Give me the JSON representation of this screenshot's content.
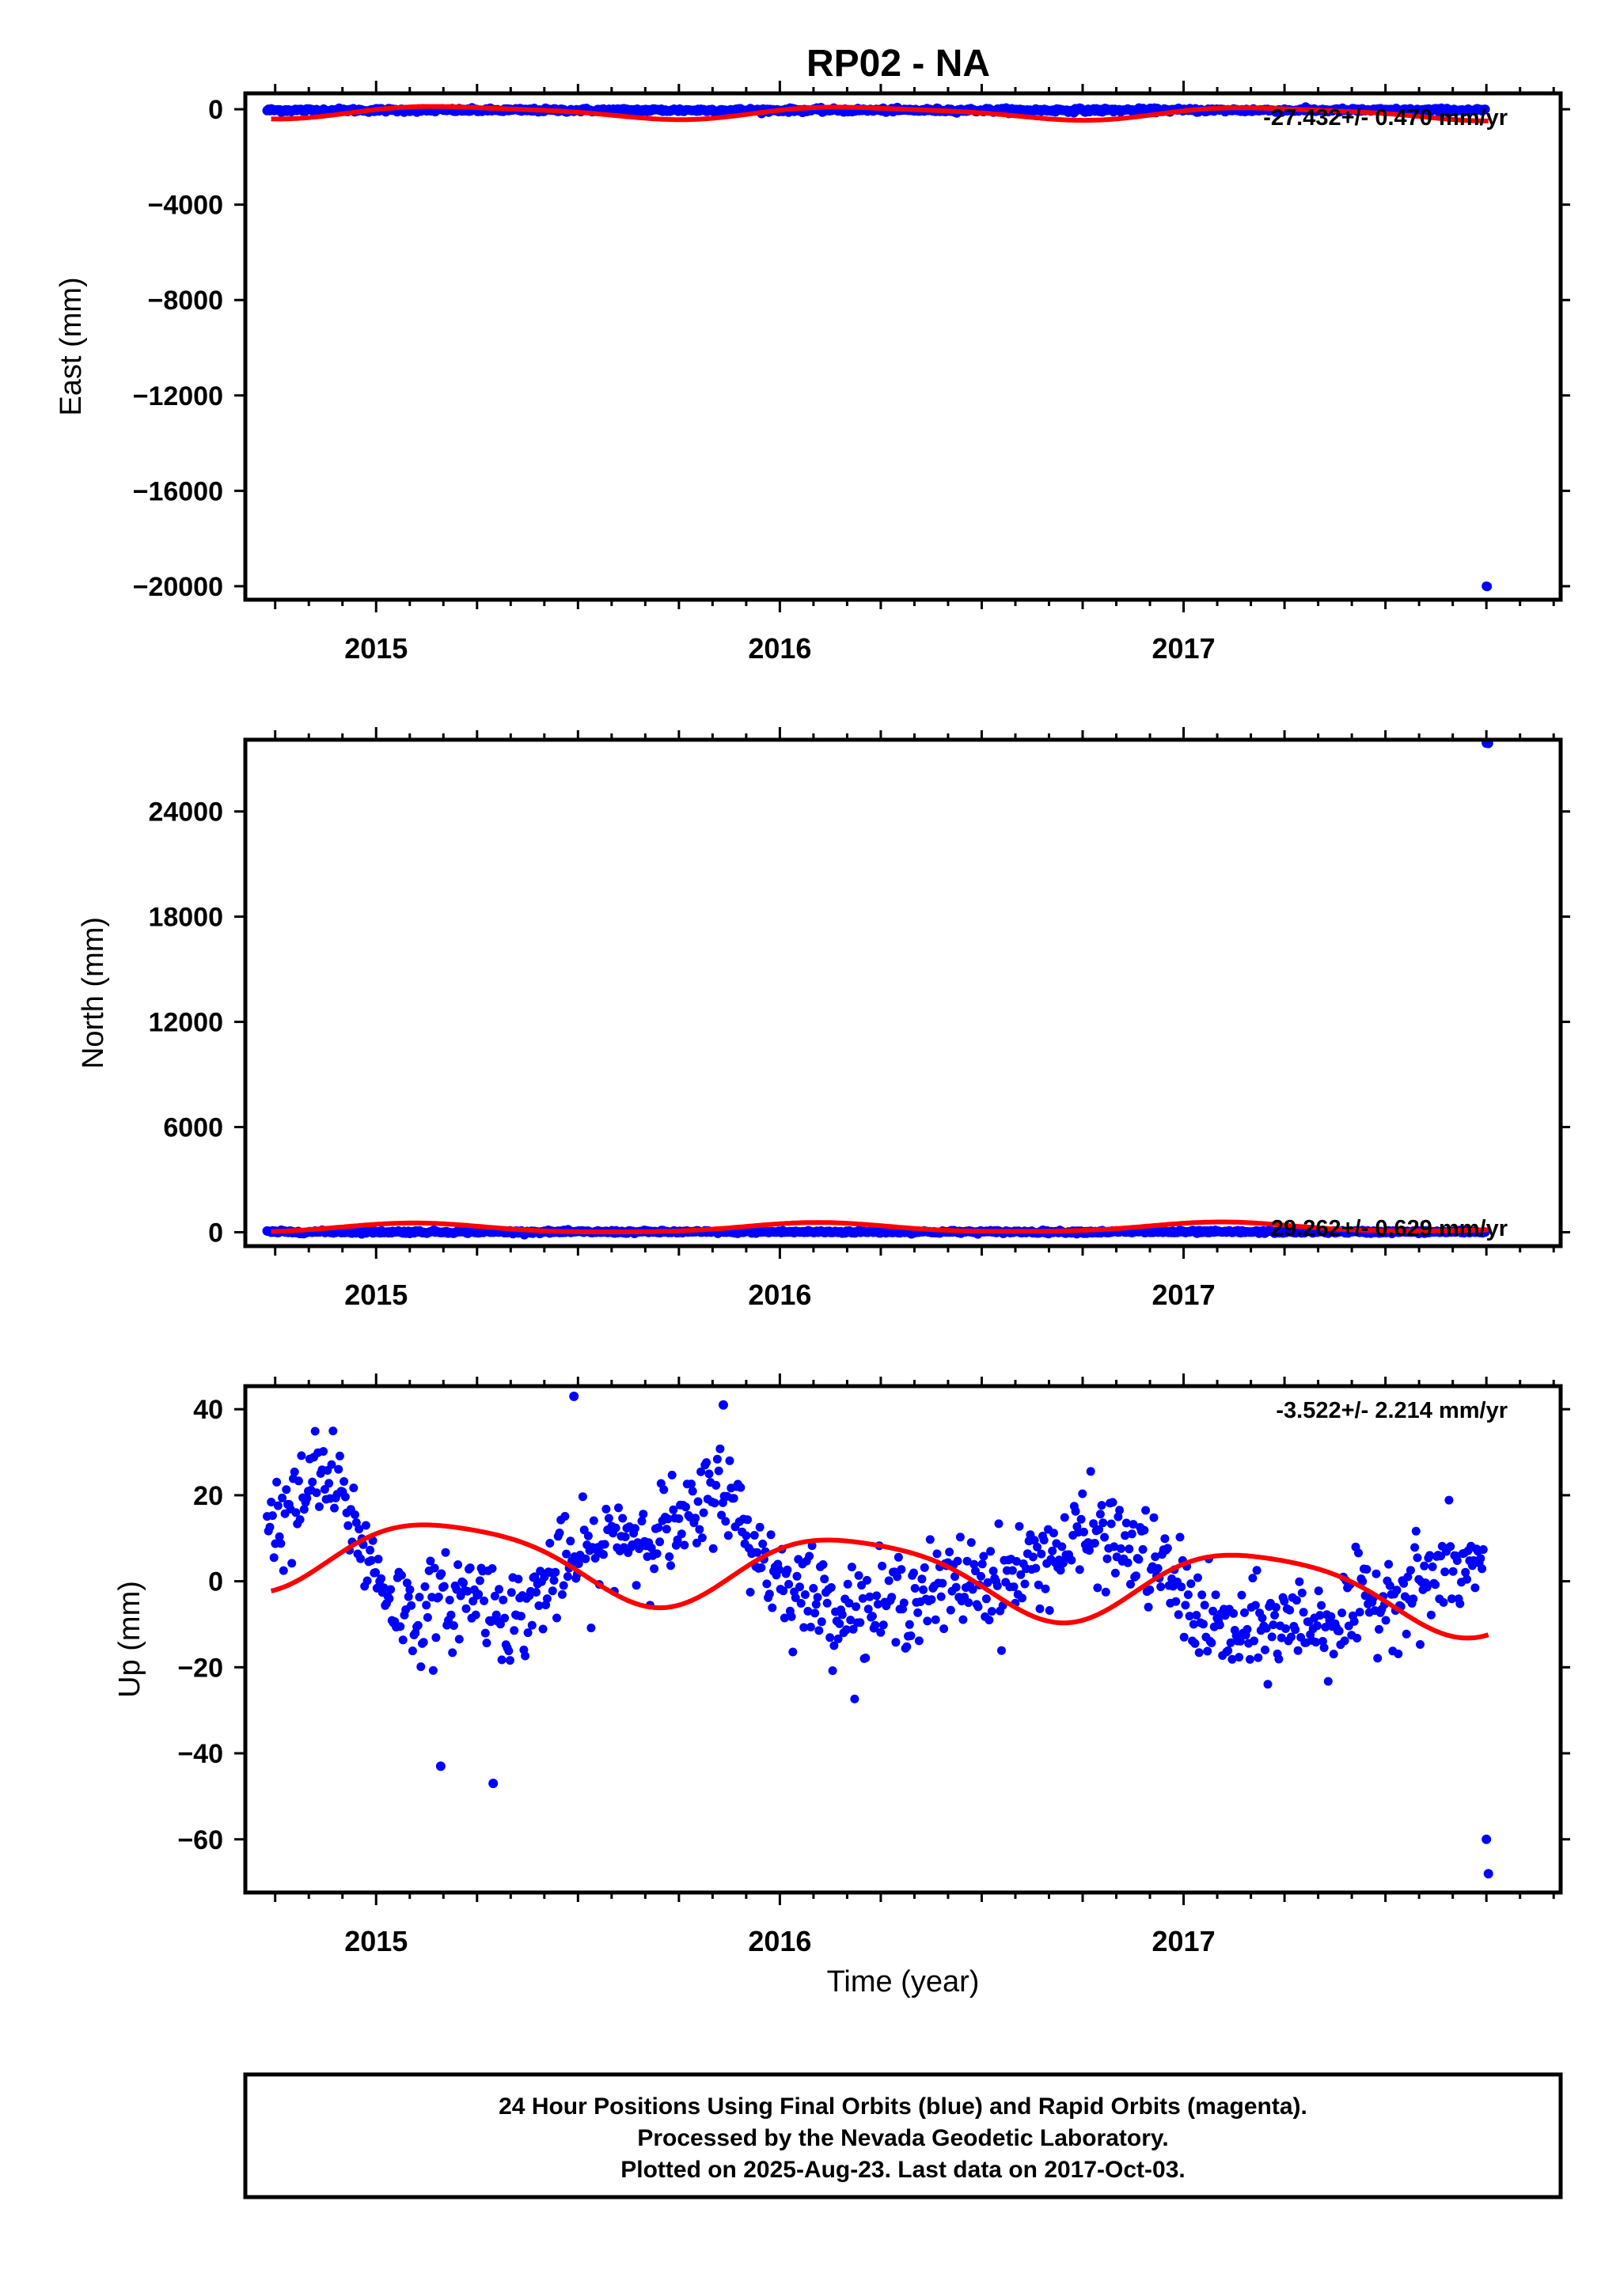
{
  "title": "RP02 - NA",
  "xlabel": "Time (year)",
  "colors": {
    "final_orbits": "#0000ff",
    "rapid_orbits": "#ff00ff",
    "model": "#ff0000",
    "frame": "#000000"
  },
  "footer": {
    "line1": "24 Hour Positions Using Final Orbits (blue) and Rapid Orbits (magenta).",
    "line2": "Processed by the Nevada Geodetic Laboratory.",
    "line3": "Plotted on 2025-Aug-23. Last data on 2017-Oct-03."
  },
  "chart_data": [
    {
      "type": "scatter",
      "ylabel": "East (mm)",
      "rate_label": "-27.432+/- 0.470 mm/yr",
      "xlim": [
        2014.68,
        2017.93
      ],
      "ylim": [
        -20500,
        600
      ],
      "xticks": [
        "2015",
        "2016",
        "2017"
      ],
      "yticks": [
        "0",
        "−4000",
        "−8000",
        "−12000",
        "−16000",
        "−20000"
      ],
      "ytick_values": [
        0,
        -4000,
        -8000,
        -12000,
        -16000,
        -20000
      ],
      "series": [],
      "data_summary": {
        "start": 2014.73,
        "end": 2017.755,
        "baseline_mm": -40,
        "scatter_mm": 40,
        "outliers": [
          {
            "x": 2017.75,
            "y": -20000
          },
          {
            "x": 2017.752,
            "y": -20010
          }
        ]
      },
      "model_curve": {
        "offset_mm": -150,
        "rate_mm_per_yr": -27.432,
        "seasonal": [
          {
            "amp": 250,
            "phase": 0.2
          },
          {
            "amp": 60,
            "phase": 1.1
          }
        ]
      }
    },
    {
      "type": "scatter",
      "ylabel": "North (mm)",
      "rate_label": "29.262+/- 0.629 mm/yr",
      "xlim": [
        2014.68,
        2017.93
      ],
      "ylim": [
        -700,
        28000
      ],
      "xticks": [
        "2015",
        "2016",
        "2017"
      ],
      "yticks": [
        "0",
        "6000",
        "12000",
        "18000",
        "24000"
      ],
      "ytick_values": [
        0,
        6000,
        12000,
        18000,
        24000
      ],
      "series": [],
      "data_summary": {
        "start": 2014.73,
        "end": 2017.755,
        "baseline_mm": 20,
        "scatter_mm": 40,
        "outliers": [
          {
            "x": 2017.75,
            "y": 27900
          },
          {
            "x": 2017.755,
            "y": 27880
          }
        ]
      },
      "model_curve": {
        "offset_mm": 250,
        "rate_mm_per_yr": 29.262,
        "seasonal": [
          {
            "amp": 260,
            "phase": 1.0
          },
          {
            "amp": 50,
            "phase": 0.4
          }
        ]
      }
    },
    {
      "type": "scatter",
      "ylabel": "Up (mm)",
      "rate_label": "-3.522+/- 2.214 mm/yr",
      "xlim": [
        2014.68,
        2017.93
      ],
      "ylim": [
        -72,
        45
      ],
      "xticks": [
        "2015",
        "2016",
        "2017"
      ],
      "yticks": [
        "40",
        "20",
        "0",
        "−20",
        "−40",
        "−60"
      ],
      "ytick_values": [
        40,
        20,
        0,
        -20,
        -40,
        -60
      ],
      "series": [
        {
          "x": [
            2014.75,
            2014.8,
            2014.85,
            2014.9,
            2014.95,
            2015.0,
            2015.05,
            2015.1,
            2015.15,
            2015.2,
            2015.25,
            2015.3,
            2015.35,
            2015.4,
            2015.45,
            2015.5,
            2015.55,
            2015.6,
            2015.65,
            2015.7,
            2015.75,
            2015.8,
            2015.85,
            2015.9,
            2015.95,
            2016.0,
            2016.05,
            2016.1,
            2016.15,
            2016.2,
            2016.25,
            2016.3,
            2016.35,
            2016.4,
            2016.45,
            2016.5,
            2016.55,
            2016.6,
            2016.65,
            2016.7,
            2016.75,
            2016.8,
            2016.85,
            2016.9,
            2016.95,
            2017.0,
            2017.05,
            2017.1,
            2017.15,
            2017.2,
            2017.25,
            2017.3,
            2017.35,
            2017.4,
            2017.45,
            2017.5,
            2017.55,
            2017.6,
            2017.65,
            2017.7,
            2017.75
          ],
          "y": [
            14,
            16,
            25,
            22,
            12,
            2,
            -5,
            -8,
            -6,
            -4,
            -2,
            -6,
            -9,
            -3,
            2,
            5,
            6,
            12,
            10,
            13,
            12,
            15,
            25,
            14,
            6,
            1,
            -2,
            -4,
            -6,
            -7,
            -6,
            -4,
            -2,
            -3,
            0,
            1,
            0,
            2,
            6,
            7,
            10,
            11,
            8,
            6,
            2,
            -3,
            -9,
            -12,
            -13,
            -11,
            -10,
            -9,
            -10,
            -8,
            -6,
            -3,
            -2,
            0,
            3,
            2,
            4
          ]
        }
      ],
      "outliers": [
        {
          "x": 2015.16,
          "y": -43
        },
        {
          "x": 2015.29,
          "y": -47
        },
        {
          "x": 2015.49,
          "y": 43
        },
        {
          "x": 2015.86,
          "y": 41
        },
        {
          "x": 2017.75,
          "y": -60
        },
        {
          "x": 2017.755,
          "y": -68
        }
      ],
      "model_curve": {
        "offset_mm": 2,
        "rate_mm_per_yr": -3.522,
        "seasonal": [
          {
            "amp": 8.5,
            "phase": 0.42
          },
          {
            "amp": 1.5,
            "phase": 2.0
          }
        ]
      }
    }
  ]
}
